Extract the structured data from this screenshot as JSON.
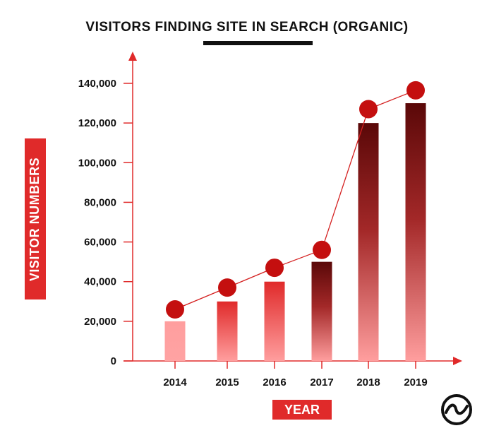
{
  "chart_data": {
    "type": "bar",
    "title": "VISITORS FINDING SITE IN SEARCH (ORGANIC)",
    "xlabel": "YEAR",
    "ylabel": "VISITOR NUMBERS",
    "categories": [
      "2014",
      "2015",
      "2016",
      "2017",
      "2018",
      "2019"
    ],
    "values": [
      20000,
      30000,
      40000,
      50000,
      120000,
      130000
    ],
    "line_values": [
      26000,
      37000,
      47000,
      56000,
      127000,
      136500
    ],
    "ylim": [
      0,
      140000
    ],
    "yticks": [
      0,
      20000,
      40000,
      60000,
      80000,
      100000,
      120000,
      140000
    ],
    "ytick_labels": [
      "0",
      "20,000",
      "40,000",
      "60,000",
      "80,000",
      "100,000",
      "120,000",
      "140,000"
    ],
    "grid": false,
    "colors": {
      "bar_light": "#ff9e9e",
      "bar_mid": "#e83a3a",
      "bar_dark": "#5a0808",
      "axis": "#e02a2a",
      "marker": "#c40f0f",
      "line": "#d42020"
    }
  },
  "logo": {
    "icon": "brand-logo-icon"
  }
}
